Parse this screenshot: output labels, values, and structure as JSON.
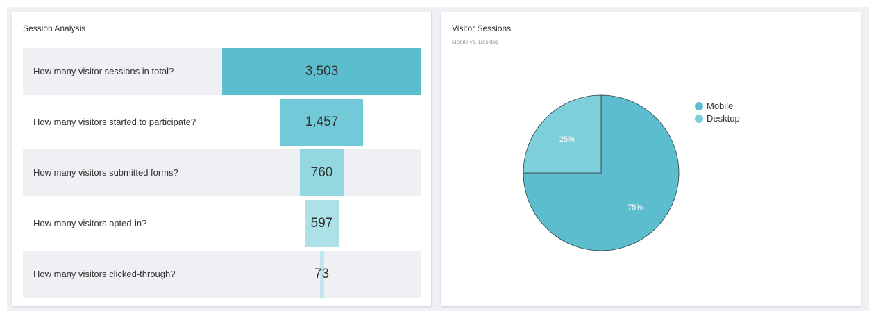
{
  "session_analysis": {
    "title": "Session Analysis"
  },
  "visitor_sessions": {
    "title": "Visitor Sessions",
    "subtitle": "Mobile vs. Desktop"
  },
  "chart_data": [
    {
      "type": "bar",
      "title": "Session Analysis",
      "categories": [
        "How many visitor sessions in total?",
        "How many visitors started to participate?",
        "How many visitors submitted forms?",
        "How many visitors opted-in?",
        "How many visitors clicked-through?"
      ],
      "values": [
        3503,
        1457,
        760,
        597,
        73
      ],
      "value_labels": [
        "3,503",
        "1,457",
        "760",
        "597",
        "73"
      ],
      "colors": [
        "#5bbdcd",
        "#72cad8",
        "#93d7e1",
        "#ade1e8",
        "#bfe8ee"
      ]
    },
    {
      "type": "pie",
      "title": "Visitor Sessions",
      "subtitle": "Mobile vs. Desktop",
      "labels": [
        "Mobile",
        "Desktop"
      ],
      "values": [
        75,
        25
      ],
      "value_labels": [
        "75%",
        "25%"
      ],
      "colors": [
        "#5bbdcd",
        "#7ccfdb"
      ],
      "legend": "top-right"
    }
  ]
}
